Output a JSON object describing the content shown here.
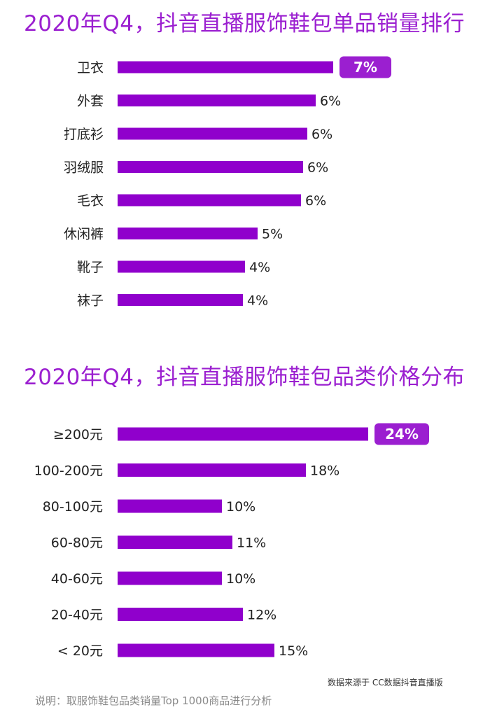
{
  "colors": {
    "bar": "#9000cc",
    "highlight": "#9b1fd0",
    "title": "#9b1fd0"
  },
  "chart_data": [
    {
      "type": "bar",
      "orientation": "horizontal",
      "title": "2020年Q4，抖音直播服饰鞋包单品销量排行",
      "categories": [
        "卫衣",
        "外套",
        "打底衫",
        "羽绒服",
        "毛衣",
        "休闲裤",
        "靴子",
        "袜子"
      ],
      "values": [
        7,
        6,
        6,
        6,
        6,
        5,
        4,
        4
      ],
      "value_labels": [
        "7%",
        "6%",
        "6%",
        "6%",
        "6%",
        "5%",
        "4%",
        "4%"
      ],
      "bar_fill_fraction": [
        1.0,
        0.92,
        0.88,
        0.86,
        0.85,
        0.65,
        0.59,
        0.58
      ],
      "highlight_index": 0,
      "xlim": [
        0,
        7
      ],
      "grid": false,
      "legend": "none"
    },
    {
      "type": "bar",
      "orientation": "horizontal",
      "title": "2020年Q4，抖音直播服饰鞋包品类价格分布",
      "categories": [
        "≥200元",
        "100-200元",
        "80-100元",
        "60-80元",
        "40-60元",
        "20-40元",
        "< 20元"
      ],
      "values": [
        24,
        18,
        10,
        11,
        10,
        12,
        15
      ],
      "value_labels": [
        "24%",
        "18%",
        "10%",
        "11%",
        "10%",
        "12%",
        "15%"
      ],
      "highlight_index": 0,
      "xlim": [
        0,
        24
      ],
      "grid": false,
      "legend": "none"
    }
  ],
  "notes": {
    "source": "数据来源于 CC数据抖音直播版",
    "description": "说明：取服饰鞋包品类销量Top 1000商品进行分析"
  }
}
